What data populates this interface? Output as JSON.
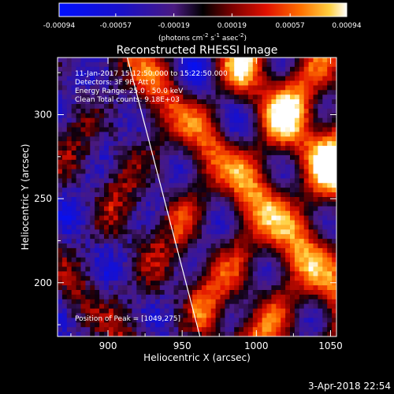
{
  "chart_data": {
    "type": "heatmap",
    "title": "Reconstructed RHESSI Image",
    "xlabel": "Heliocentric X (arcsec)",
    "ylabel": "Heliocentric Y (arcsec)",
    "xlim": [
      866,
      1054
    ],
    "ylim": [
      168,
      334
    ],
    "x_ticks": [
      900,
      950,
      1000,
      1050
    ],
    "y_ticks": [
      200,
      250,
      300
    ],
    "x_tick_labels": [
      "900",
      "950",
      "1000",
      "1050"
    ],
    "y_tick_labels": [
      "200",
      "250",
      "300"
    ],
    "colorbar": {
      "range": [
        -0.00094,
        0.00094
      ],
      "ticks": [
        -0.00094,
        -0.00057,
        -0.00019,
        0.00019,
        0.00057,
        0.00094
      ],
      "tick_labels": [
        "-0.00094",
        "-0.00057",
        "-0.00019",
        "0.00019",
        "0.00057",
        "0.00094"
      ],
      "unit_base": "(photons cm",
      "unit_exp1": "-2",
      "unit_mid": " s",
      "unit_exp2": "-1",
      "unit_mid2": " asec",
      "unit_exp3": "-2",
      "unit_end": ")"
    },
    "annotations": [
      "11-Jan-2017 15:12:50.000 to 15:22:50.000",
      "Detectors: 3F 9F, Att 0",
      "Energy Range: 25.0 - 50.0 keV",
      "Clean     Total counts: 9.18E+03"
    ],
    "peak_label": "Position of Peak = [1049,275]",
    "peak": [
      1049,
      275
    ],
    "limb_line": [
      [
        913,
        334
      ],
      [
        962,
        168
      ]
    ]
  },
  "timestamp": "3-Apr-2018 22:54"
}
